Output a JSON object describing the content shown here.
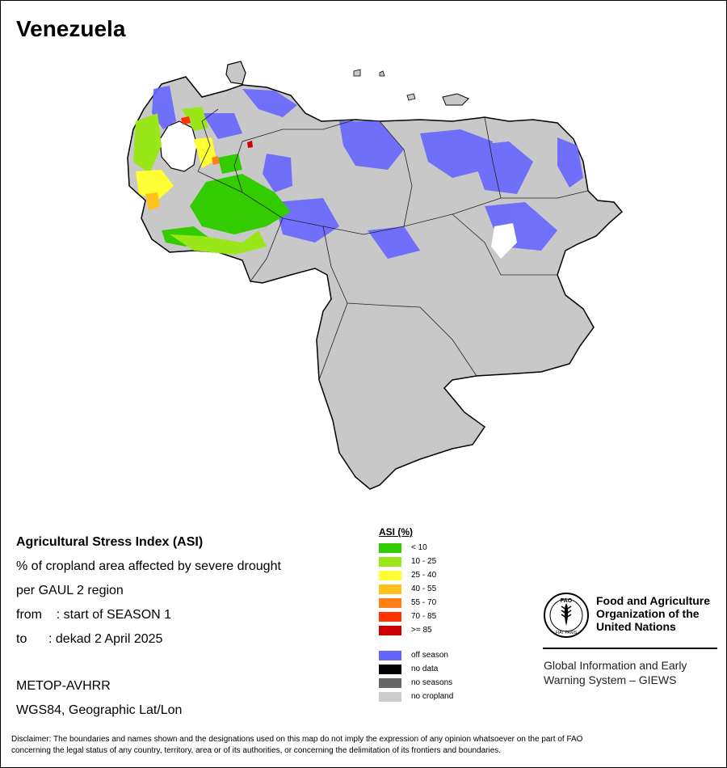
{
  "title": "Venezuela",
  "info": {
    "heading": "Agricultural Stress Index (ASI)",
    "line1": "% of cropland area affected by severe drought",
    "line2": "per GAUL 2 region",
    "from_label": "from",
    "from_value": ": start of SEASON 1",
    "to_label": "to",
    "to_value": ": dekad 2 April 2025",
    "sensor": "METOP-AVHRR",
    "projection": "WGS84, Geographic Lat/Lon"
  },
  "legend": {
    "title": "ASI (%)",
    "classes": [
      {
        "label": "< 10",
        "color": "#33cc00"
      },
      {
        "label": "10 - 25",
        "color": "#99e619"
      },
      {
        "label": "25 - 40",
        "color": "#ffff33"
      },
      {
        "label": "40 - 55",
        "color": "#ffc21a"
      },
      {
        "label": "55 - 70",
        "color": "#ff8019"
      },
      {
        "label": "70 - 85",
        "color": "#ff3300"
      },
      {
        "label": ">= 85",
        "color": "#cc0000"
      }
    ],
    "other": [
      {
        "label": "off season",
        "color": "#6666ff"
      },
      {
        "label": "no data",
        "color": "#000000"
      },
      {
        "label": "no seasons",
        "color": "#666666"
      },
      {
        "label": "no cropland",
        "color": "#cccccc"
      }
    ]
  },
  "fao": {
    "emblem_top": "FAO",
    "emblem_bottom": "FIAT PANIS",
    "org_line1": "Food and Agriculture",
    "org_line2": "Organization of the",
    "org_line3": "United Nations",
    "giews_line1": "Global Information and Early",
    "giews_line2": "Warning System – GIEWS"
  },
  "disclaimer_line1": "Disclaimer: The boundaries and names shown and the designations used on this map do not imply the expression of any opinion whatsoever on the part of FAO",
  "disclaimer_line2": "concerning the legal status of any country, territory, area or of its authorities, or concerning the delimitation of its frontiers and boundaries."
}
